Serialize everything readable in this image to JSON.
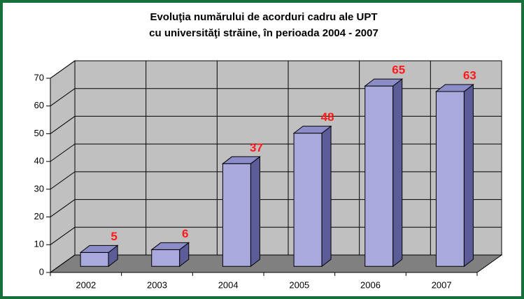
{
  "chart_data": {
    "type": "bar3d",
    "title": [
      "Evoluţia numărului de acorduri cadru ale UPT",
      "cu universităţi străine, în perioada 2004 - 2007"
    ],
    "categories": [
      "2002",
      "2003",
      "2004",
      "2005",
      "2006",
      "2007"
    ],
    "values": [
      5,
      6,
      37,
      48,
      65,
      63
    ],
    "color": "#a9a9dd",
    "label_color": "#ff1a1a",
    "ylim": [
      0,
      70
    ],
    "yticks": [
      0,
      10,
      20,
      30,
      40,
      50,
      60,
      70
    ],
    "grid": true
  }
}
